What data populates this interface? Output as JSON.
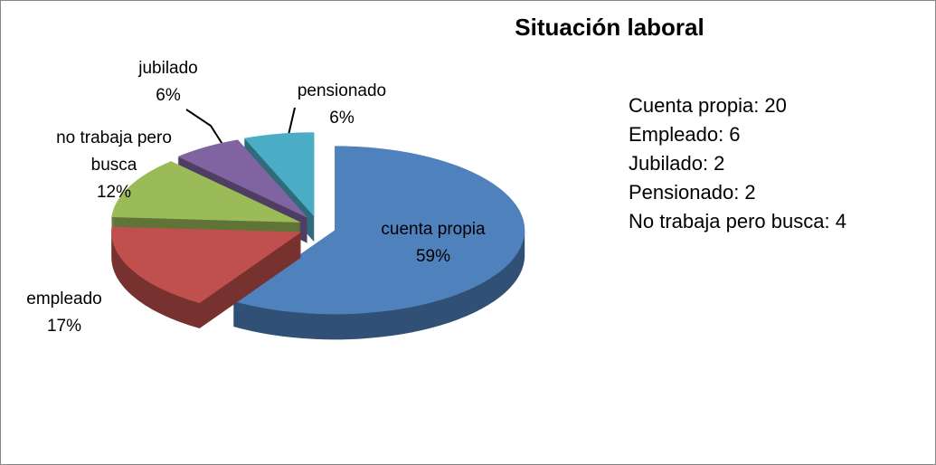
{
  "chart_data": {
    "type": "pie",
    "title": "Situación laboral",
    "categories": [
      "cuenta propia",
      "empleado",
      "no trabaja pero busca",
      "jubilado",
      "pensionado"
    ],
    "values": [
      59,
      17,
      12,
      6,
      6
    ],
    "value_labels": [
      "59%",
      "17%",
      "12%",
      "6%",
      "6%"
    ],
    "colors": [
      "#4f81bd",
      "#c0504d",
      "#9bbb59",
      "#8064a2",
      "#4bacc6"
    ],
    "annotations": [
      "Cuenta propia: 20",
      "Empleado: 6",
      "Jubilado: 2",
      "Pensionado: 2",
      "No trabaja pero busca: 4"
    ]
  }
}
